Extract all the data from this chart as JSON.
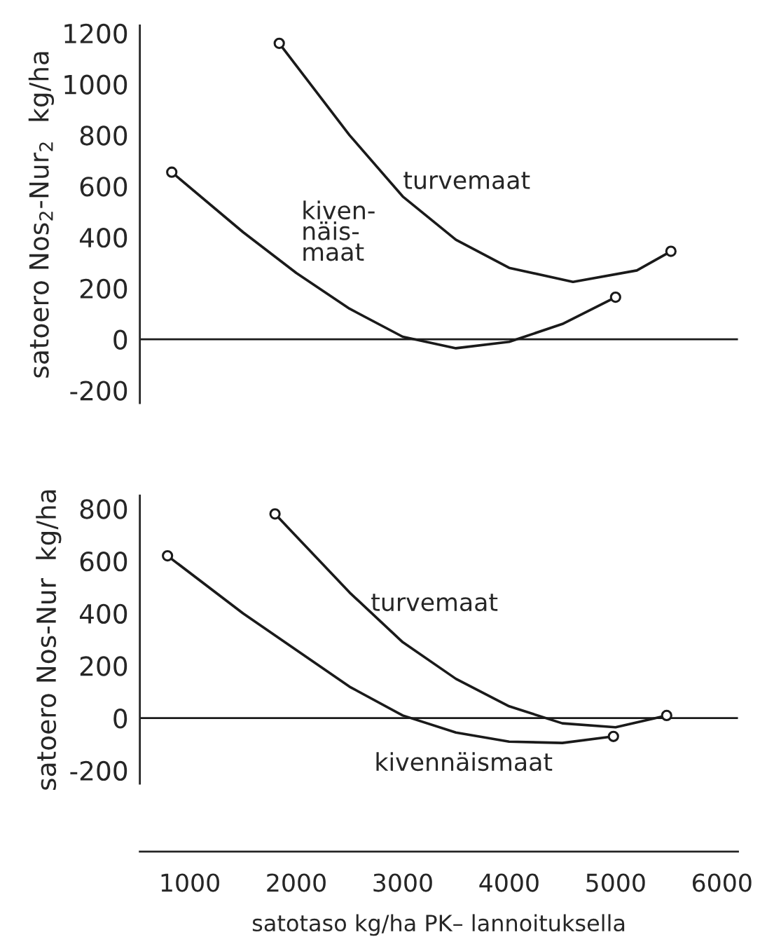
{
  "chart_data": [
    {
      "type": "line",
      "ylabel": "satoero Nos$_{2}$-Nur$_{2}$  kg/ha",
      "xlim": [
        530,
        6150
      ],
      "xticks": [
        1000,
        2000,
        3000,
        4000,
        5000,
        6000
      ],
      "ylim": [
        -250,
        1230
      ],
      "yticks": [
        -200,
        0,
        200,
        400,
        600,
        800,
        1000,
        1200
      ],
      "tick_labels": "y",
      "grid": false,
      "legend": false,
      "series": [
        {
          "color": "#1a1a1a",
          "x": [
            1840,
            2500,
            3000,
            3500,
            4000,
            4600,
            5200,
            5520
          ],
          "values": [
            1160,
            800,
            560,
            390,
            280,
            225,
            270,
            345
          ]
        },
        {
          "color": "#1a1a1a",
          "x": [
            830,
            1500,
            2000,
            2500,
            3000,
            3500,
            4000,
            4500,
            5000
          ],
          "values": [
            655,
            420,
            260,
            120,
            10,
            -35,
            -10,
            60,
            165
          ]
        },
        {
          "type": "scatter",
          "marker": "circle",
          "color": "#1a1a1a",
          "x": [
            1840,
            5520,
            830,
            5000
          ],
          "values": [
            1160,
            345,
            655,
            165
          ]
        }
      ],
      "ref_lines": [
        {
          "axis": "y",
          "value": 0
        }
      ],
      "annotations": [
        "turvemaat",
        "kiven-\nnäis-\nmaat"
      ]
    },
    {
      "type": "line",
      "ylabel": "satoero Nos-Nur  kg/ha",
      "xlabel": "satotaso kg/ha PK– lannoituksella",
      "xlim": [
        530,
        6150
      ],
      "xticks": [
        1000,
        2000,
        3000,
        4000,
        5000,
        6000
      ],
      "ylim": [
        -250,
        850
      ],
      "yticks": [
        -200,
        0,
        200,
        400,
        600,
        800
      ],
      "grid": false,
      "legend": false,
      "series": [
        {
          "color": "#1a1a1a",
          "x": [
            1800,
            2500,
            3000,
            3500,
            4000,
            4500,
            5000,
            5480
          ],
          "values": [
            780,
            480,
            290,
            150,
            45,
            -20,
            -35,
            10
          ]
        },
        {
          "color": "#1a1a1a",
          "x": [
            790,
            1500,
            2000,
            2500,
            3000,
            3500,
            4000,
            4500,
            4980
          ],
          "values": [
            620,
            400,
            260,
            120,
            10,
            -55,
            -90,
            -95,
            -70
          ]
        },
        {
          "type": "scatter",
          "marker": "circle",
          "color": "#1a1a1a",
          "x": [
            1800,
            5480,
            790,
            4980
          ],
          "values": [
            780,
            10,
            620,
            -70
          ]
        }
      ],
      "ref_lines": [
        {
          "axis": "y",
          "value": 0
        }
      ],
      "annotations": [
        "turvemaat",
        "kivennäismaat"
      ]
    }
  ]
}
